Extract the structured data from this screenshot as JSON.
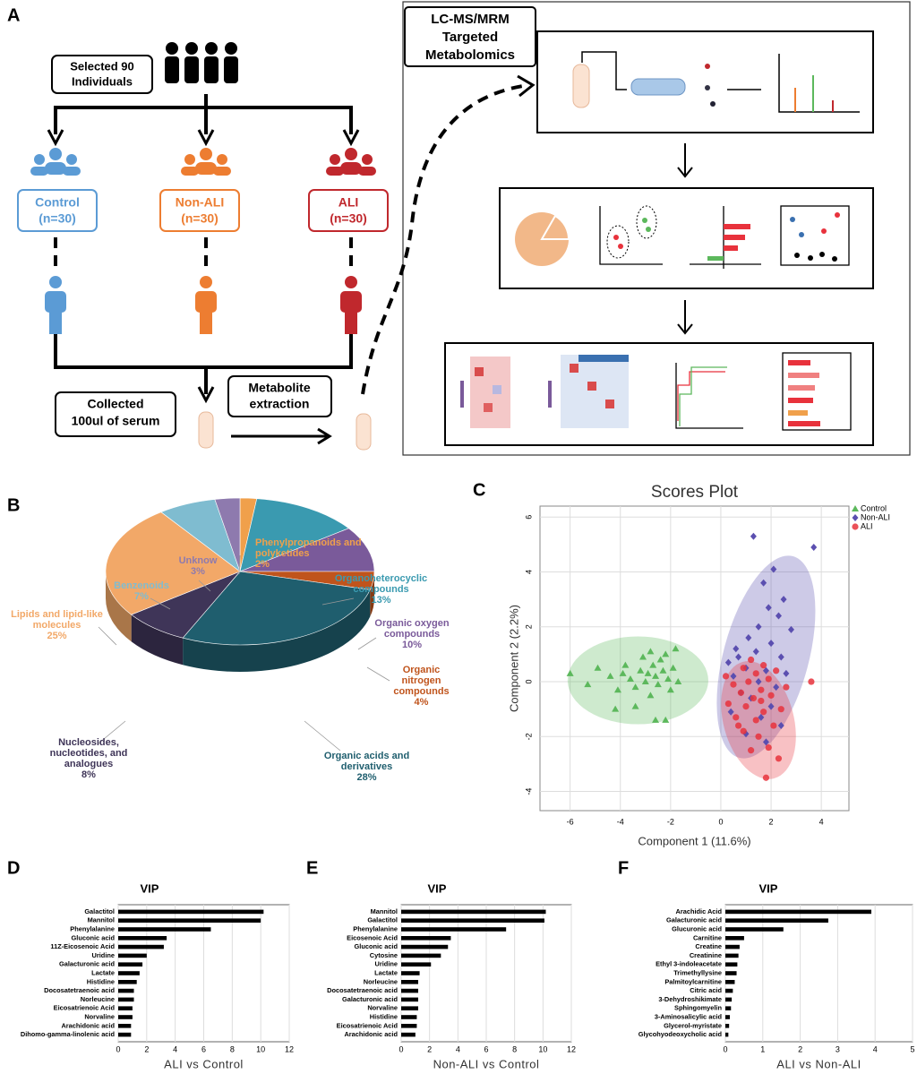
{
  "diagram": {
    "panel_label": "A",
    "selected": [
      "Selected 90",
      "Individuals"
    ],
    "groups": [
      {
        "name": "Control",
        "n": "(n=30)",
        "color": "#5b9bd5"
      },
      {
        "name": "Non-ALI",
        "n": "(n=30)",
        "color": "#ed7d31"
      },
      {
        "name": "ALI",
        "n": "(n=30)",
        "color": "#c0282d"
      }
    ],
    "collected": [
      "Collected",
      "100ul of serum"
    ],
    "extraction": [
      "Metabolite",
      "extraction"
    ],
    "method": [
      "LC-MS/MRM",
      "Targeted",
      "Metabolomics"
    ]
  },
  "chart_data": [
    {
      "type": "pie",
      "panel_label": "B",
      "categories": [
        "Phenylpropanoids and polyketides",
        "Organoheterocyclic compounds",
        "Organic oxygen compounds",
        "Organic nitrogen compounds",
        "Organic acids and derivatives",
        "Nucleosides, nucleotides, and analogues",
        "Lipids and lipid-like molecules",
        "Benzenoids",
        "Unknow"
      ],
      "values": [
        2,
        13,
        10,
        4,
        28,
        8,
        25,
        7,
        3
      ],
      "value_labels": [
        "2%",
        "13%",
        "10%",
        "4%",
        "28%",
        "8%",
        "25%",
        "7%",
        "3%"
      ],
      "colors": [
        "#f0a04b",
        "#3a9ab0",
        "#7a5a9a",
        "#c0541c",
        "#1f5e6e",
        "#3f3558",
        "#f2a868",
        "#7fbcd0",
        "#8e7aae"
      ]
    },
    {
      "type": "scatter",
      "panel_label": "C",
      "title": "Scores Plot",
      "x_label": "Component 1 (11.6%)",
      "y_label": "Component 2 (2.2%)",
      "xlim": [
        -7.2,
        5.1
      ],
      "ylim": [
        -4.7,
        6.4
      ],
      "xticks": [
        -6,
        -4,
        -2,
        0,
        2,
        4
      ],
      "yticks": [
        -4,
        -2,
        0,
        2,
        4,
        6
      ],
      "grid": true,
      "legend": "top-right",
      "series": [
        {
          "name": "Control",
          "color": "#5cb85c",
          "marker": "triangle",
          "x": [
            -6,
            -5.3,
            -4.9,
            -4.4,
            -4.1,
            -3.8,
            -3.6,
            -3.4,
            -3.2,
            -3.1,
            -3,
            -2.9,
            -2.8,
            -2.7,
            -2.6,
            -2.5,
            -2.4,
            -2.3,
            -2.2,
            -2.1,
            -2,
            -1.9,
            -1.8,
            -2.2,
            -2.6,
            -3.4,
            -4.2,
            -3.9,
            -1.7,
            -2.8
          ],
          "values": [
            0.3,
            -0.1,
            0.5,
            0.2,
            -0.3,
            0.6,
            0.1,
            -0.2,
            0.4,
            0.9,
            0,
            0.3,
            -0.5,
            0.6,
            0.2,
            -0.1,
            0.8,
            0.4,
            1,
            0.1,
            -0.3,
            0.5,
            1.2,
            -1.4,
            -1.4,
            -0.9,
            -1,
            0.3,
            0,
            1.1
          ],
          "ellipse": {
            "cx": -3.3,
            "cy": 0.05,
            "rx": 2.8,
            "ry": 1.6,
            "angle": 0
          }
        },
        {
          "name": "Non-ALI",
          "color": "#5b4fb0",
          "marker": "diamond",
          "x": [
            1.3,
            3.7,
            2.1,
            1.7,
            2.5,
            1.9,
            2.3,
            1.5,
            2.8,
            1.1,
            2,
            0.6,
            1.4,
            2.4,
            0.3,
            1,
            1.8,
            2.6,
            0.5,
            1.5,
            2.2,
            0.8,
            1.2,
            2,
            0.4,
            1.6,
            2.4,
            1,
            1.8,
            0.7
          ],
          "values": [
            5.3,
            4.9,
            4.1,
            3.6,
            3,
            2.7,
            2.4,
            2,
            1.9,
            1.6,
            1.4,
            1.2,
            1.1,
            0.9,
            0.7,
            0.5,
            0.4,
            0.3,
            0.2,
            0,
            -0.2,
            -0.4,
            -0.6,
            -0.9,
            -1.1,
            -1.3,
            -1.6,
            -1.9,
            -2.2,
            0.9
          ],
          "ellipse": {
            "cx": 1.8,
            "cy": 0.9,
            "rx": 1.7,
            "ry": 3.8,
            "angle": 15
          }
        },
        {
          "name": "ALI",
          "color": "#e8323c",
          "marker": "circle",
          "x": [
            1.8,
            3.6,
            1.2,
            1.9,
            1.5,
            0.9,
            2.1,
            1.4,
            0.6,
            1.7,
            2.4,
            1,
            0.3,
            1.3,
            2,
            0.8,
            1.6,
            2.6,
            0.5,
            1.1,
            1.9,
            0.2,
            1.4,
            2.2,
            0.9,
            1.7,
            1.2,
            0.7,
            2.3,
            1.6
          ],
          "values": [
            -3.5,
            0,
            -2.5,
            -2.4,
            -2,
            -1.8,
            -1.6,
            -1.4,
            -1.3,
            -1.1,
            -1,
            -0.9,
            -0.8,
            -0.6,
            -0.5,
            -0.4,
            -0.3,
            -0.2,
            -0.1,
            0,
            0.1,
            0.2,
            0.3,
            0.4,
            0.5,
            0.6,
            0.8,
            -1.6,
            -2.8,
            -0.7
          ],
          "ellipse": {
            "cx": 1.5,
            "cy": -1.4,
            "rx": 1.4,
            "ry": 2.2,
            "angle": -15
          }
        }
      ]
    },
    {
      "type": "hbar",
      "panel_label": "D",
      "title": "VIP",
      "x_label": "ALI vs Control",
      "color": "#000000",
      "categories": [
        "Galactitol",
        "Mannitol",
        "Phenylalanine",
        "Gluconic acid",
        "11Z-Eicosenoic Acid",
        "Uridine",
        "Galacturonic acid",
        "Lactate",
        "Histidine",
        "Docosatetraenoic acid",
        "Norleucine",
        "Eicosatrienoic Acid",
        "Norvaline",
        "Arachidonic acid",
        "Dihomo-gamma-linolenic acid"
      ],
      "values": [
        10.2,
        10,
        6.5,
        3.4,
        3.2,
        2,
        1.7,
        1.5,
        1.3,
        1.1,
        1.1,
        1,
        1,
        0.9,
        0.9
      ],
      "xlim": [
        0,
        12
      ],
      "xticks": [
        0,
        2,
        4,
        6,
        8,
        10,
        12
      ],
      "grid": true
    },
    {
      "type": "hbar",
      "panel_label": "E",
      "title": "VIP",
      "x_label": "Non-ALI vs Control",
      "color": "#000000",
      "categories": [
        "Mannitol",
        "Galactitol",
        "Phenylalanine",
        "Eicosenoic Acid",
        "Gluconic acid",
        "Cytosine",
        "Uridine",
        "Lactate",
        "Norleucine",
        "Docosatetraenoic acid",
        "Galacturonic acid",
        "Norvaline",
        "Histidine",
        "Eicosatrienoic Acid",
        "Arachidonic acid"
      ],
      "values": [
        10.2,
        10.1,
        7.4,
        3.5,
        3.3,
        2.8,
        2.1,
        1.3,
        1.2,
        1.2,
        1.2,
        1.2,
        1.1,
        1.1,
        1
      ],
      "xlim": [
        0,
        12
      ],
      "xticks": [
        0,
        2,
        4,
        6,
        8,
        10,
        12
      ],
      "grid": true
    },
    {
      "type": "hbar",
      "panel_label": "F",
      "title": "VIP",
      "x_label": "ALI vs Non-ALI",
      "color": "#000000",
      "categories": [
        "Arachidic Acid",
        "Galacturonic acid",
        "Glucuronic acid",
        "Carnitine",
        "Creatine",
        "Creatinine",
        "Ethyl 3-indoleacetate",
        "Trimethyllysine",
        "Palmitoylcarnitine",
        "Citric acid",
        "3-Dehydroshikimate",
        "Sphingomyelin",
        "3-Aminosalicylic acid",
        "Glycerol-myristate",
        "Glycohyodeoxycholic acid"
      ],
      "values": [
        3.9,
        2.75,
        1.55,
        0.5,
        0.38,
        0.35,
        0.32,
        0.3,
        0.25,
        0.2,
        0.17,
        0.15,
        0.12,
        0.1,
        0.08
      ],
      "xlim": [
        0,
        5
      ],
      "xticks": [
        0,
        1,
        2,
        3,
        4,
        5
      ],
      "grid": true
    }
  ]
}
